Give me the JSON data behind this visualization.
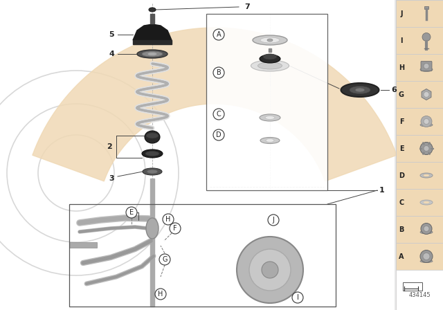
{
  "background_color": "#e8e8e8",
  "main_bg": "#ffffff",
  "peach_bg": "#f0d9b5",
  "right_panel_bg": "#f0d9b5",
  "part_number": "434145",
  "right_panel_labels": [
    "J",
    "I",
    "H",
    "G",
    "F",
    "E",
    "D",
    "C",
    "B",
    "A"
  ],
  "line_color": "#444444",
  "dash_color": "#888888",
  "spring_outer": "#cccccc",
  "spring_inner": "#aaaaaa",
  "dark_part": "#2a2a2a",
  "mid_part": "#888888",
  "light_part": "#cccccc"
}
